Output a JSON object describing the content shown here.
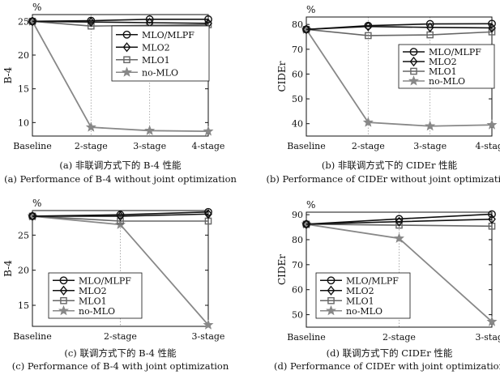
{
  "chart_data": [
    {
      "id": "a",
      "type": "line",
      "unit": "%",
      "ylabel": "B-4",
      "categories": [
        "Baseline",
        "2-stage",
        "3-stage",
        "4-stage"
      ],
      "ylim": [
        8,
        26
      ],
      "yticks": [
        10,
        15,
        20,
        25
      ],
      "caption_cn": "(a) 非联调方式下的 B-4 性能",
      "caption_en": "(a) Performance of B-4 without joint optimization",
      "legend_position": "top-right",
      "series": [
        {
          "name": "MLO/MLPF",
          "marker": "circle",
          "color": "#111111",
          "values": [
            25.0,
            25.1,
            25.3,
            25.3
          ]
        },
        {
          "name": "MLO2",
          "marker": "diamond",
          "color": "#111111",
          "values": [
            25.0,
            24.9,
            24.8,
            24.7
          ]
        },
        {
          "name": "MLO1",
          "marker": "square",
          "color": "#666666",
          "values": [
            25.0,
            24.3,
            24.4,
            24.5
          ]
        },
        {
          "name": "no-MLO",
          "marker": "star",
          "color": "#888888",
          "values": [
            25.0,
            9.3,
            8.8,
            8.7
          ]
        }
      ]
    },
    {
      "id": "b",
      "type": "line",
      "unit": "%",
      "ylabel": "CIDEr",
      "categories": [
        "Baseline",
        "2-stage",
        "3-stage",
        "4-stage"
      ],
      "ylim": [
        35,
        83
      ],
      "yticks": [
        40,
        50,
        60,
        70,
        80
      ],
      "caption_cn": "(b) 非联调方式下的 CIDEr 性能",
      "caption_en": "(b) Performance of CIDEr without joint optimization",
      "legend_position": "center-right",
      "series": [
        {
          "name": "MLO/MLPF",
          "marker": "circle",
          "color": "#111111",
          "values": [
            78.0,
            79.5,
            80.2,
            80.3
          ]
        },
        {
          "name": "MLO2",
          "marker": "diamond",
          "color": "#111111",
          "values": [
            78.0,
            79.2,
            78.8,
            78.6
          ]
        },
        {
          "name": "MLO1",
          "marker": "square",
          "color": "#666666",
          "values": [
            78.0,
            75.5,
            75.8,
            77.0
          ]
        },
        {
          "name": "no-MLO",
          "marker": "star",
          "color": "#888888",
          "values": [
            78.0,
            40.5,
            39.0,
            39.5
          ]
        }
      ]
    },
    {
      "id": "c",
      "type": "line",
      "unit": "%",
      "ylabel": "B-4",
      "categories": [
        "Baseline",
        "2-stage",
        "3-stage"
      ],
      "ylim": [
        12,
        28.5
      ],
      "yticks": [
        15,
        20,
        25
      ],
      "caption_cn": "(c) 联调方式下的 B-4 性能",
      "caption_en": "(c) Performance of B-4 with joint optimization",
      "legend_position": "bottom-left",
      "series": [
        {
          "name": "MLO/MLPF",
          "marker": "circle",
          "color": "#111111",
          "values": [
            27.7,
            27.9,
            28.3
          ]
        },
        {
          "name": "MLO2",
          "marker": "diamond",
          "color": "#111111",
          "values": [
            27.7,
            27.7,
            28.0
          ]
        },
        {
          "name": "MLO1",
          "marker": "square",
          "color": "#666666",
          "values": [
            27.7,
            27.0,
            27.0
          ]
        },
        {
          "name": "no-MLO",
          "marker": "star",
          "color": "#888888",
          "values": [
            27.7,
            26.5,
            12.2
          ]
        }
      ]
    },
    {
      "id": "d",
      "type": "line",
      "unit": "%",
      "ylabel": "CIDEr",
      "categories": [
        "Baseline",
        "2-stage",
        "3-stage"
      ],
      "ylim": [
        45,
        91
      ],
      "yticks": [
        50,
        60,
        70,
        80,
        90
      ],
      "caption_cn": "(d) 联调方式下的 CIDEr 性能",
      "caption_en": "(d) Performance of CIDEr with joint optimization",
      "legend_position": "bottom-left",
      "series": [
        {
          "name": "MLO/MLPF",
          "marker": "circle",
          "color": "#111111",
          "values": [
            86.2,
            88.3,
            90.2
          ]
        },
        {
          "name": "MLO2",
          "marker": "diamond",
          "color": "#111111",
          "values": [
            86.2,
            87.2,
            88.2
          ]
        },
        {
          "name": "MLO1",
          "marker": "square",
          "color": "#666666",
          "values": [
            86.2,
            85.8,
            85.4
          ]
        },
        {
          "name": "no-MLO",
          "marker": "star",
          "color": "#888888",
          "values": [
            86.2,
            80.5,
            47.2
          ]
        }
      ]
    }
  ]
}
